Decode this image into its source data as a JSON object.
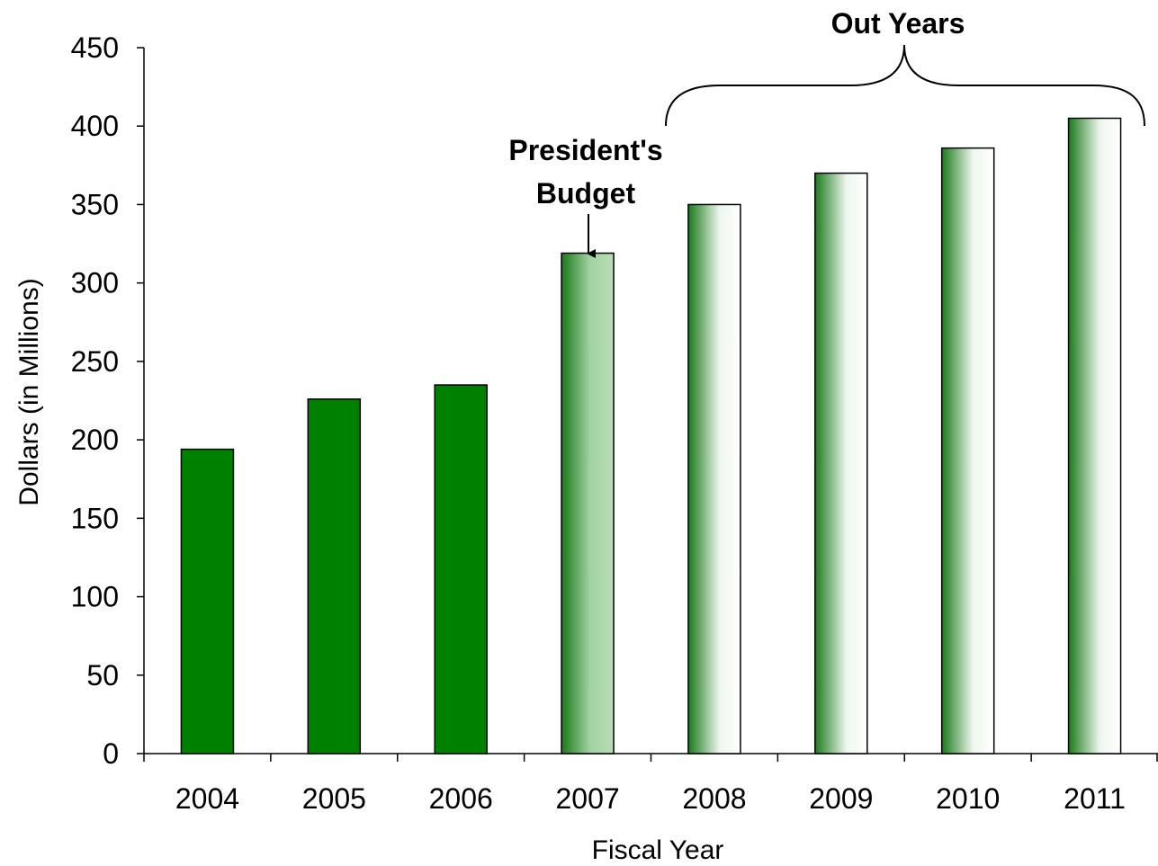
{
  "chart_data": {
    "type": "bar",
    "title": "",
    "xlabel": "Fiscal Year",
    "ylabel": "Dollars (in Millions)",
    "ylim": [
      0,
      450
    ],
    "yticks": [
      0,
      50,
      100,
      150,
      200,
      250,
      300,
      350,
      400,
      450
    ],
    "categories": [
      "2004",
      "2005",
      "2006",
      "2007",
      "2008",
      "2009",
      "2010",
      "2011"
    ],
    "values": [
      194,
      226,
      235,
      319,
      350,
      370,
      386,
      405
    ],
    "grid": false,
    "legend": "none",
    "bar_styles": [
      "solid",
      "solid",
      "solid",
      "gradient-light",
      "gradient-fade",
      "gradient-fade",
      "gradient-fade",
      "gradient-fade"
    ],
    "colors": {
      "solid": "#008000",
      "dark_green": "#1b7a1b",
      "light_green": "#b0dab0",
      "white": "#ffffff",
      "outline": "#000000"
    },
    "annotations": {
      "presidents_budget_line1": "President's",
      "presidents_budget_line2": "Budget",
      "presidents_budget_target": "2007",
      "out_years": "Out Years",
      "out_years_range": [
        "2008",
        "2011"
      ]
    }
  }
}
